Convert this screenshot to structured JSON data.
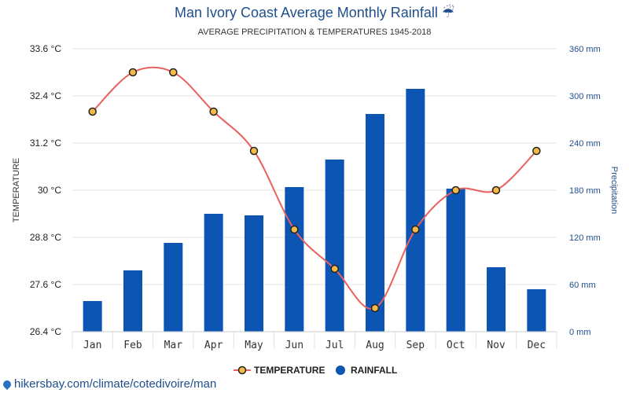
{
  "chart_data": {
    "type": "bar",
    "title": "Man Ivory Coast Average Monthly Rainfall",
    "title_icon": "umbrella-icon",
    "subtitle": "AVERAGE PRECIPITATION & TEMPERATURES 1945-2018",
    "categories": [
      "Jan",
      "Feb",
      "Mar",
      "Apr",
      "May",
      "Jun",
      "Jul",
      "Aug",
      "Sep",
      "Oct",
      "Nov",
      "Dec"
    ],
    "series": [
      {
        "name": "TEMPERATURE",
        "type": "line",
        "axis": "left",
        "unit": "°C",
        "color": "#e8615f",
        "marker_color": "#f5b947",
        "values": [
          32,
          33,
          33,
          32,
          31,
          29,
          28,
          27,
          29,
          30,
          30,
          31
        ]
      },
      {
        "name": "RAINFALL",
        "type": "bar",
        "axis": "right",
        "unit": "mm",
        "color": "#0d55b3",
        "values": [
          39,
          78,
          113,
          150,
          148,
          184,
          219,
          277,
          309,
          182,
          82,
          54
        ]
      }
    ],
    "left_axis": {
      "label": "TEMPERATURE",
      "range": [
        26.4,
        33.6
      ],
      "ticks": [
        "33.6 °C",
        "32.4 °C",
        "31.2 °C",
        "30 °C",
        "28.8 °C",
        "27.6 °C",
        "26.4 °C"
      ]
    },
    "right_axis": {
      "label": "Precipitation",
      "range": [
        0,
        360
      ],
      "ticks": [
        "360 mm",
        "300 mm",
        "240 mm",
        "180 mm",
        "120 mm",
        "60 mm",
        "0 mm"
      ]
    },
    "grid": true,
    "legend_position": "bottom"
  },
  "watermark": {
    "text": "hikersbay.com/climate/cotedivoire/man",
    "icon": "map-pin-icon"
  }
}
